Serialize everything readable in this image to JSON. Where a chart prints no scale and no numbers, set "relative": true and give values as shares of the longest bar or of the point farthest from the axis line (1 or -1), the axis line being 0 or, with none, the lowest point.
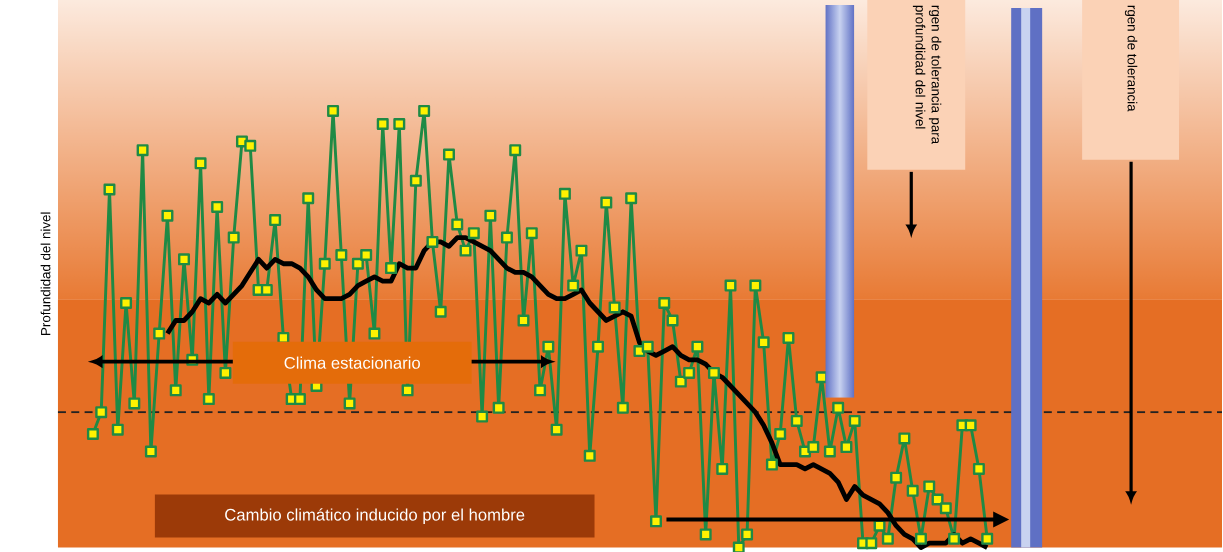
{
  "chart_data": {
    "type": "line",
    "ylabel": "Profundidad del nivel",
    "relative": true,
    "categories": [
      null,
      null,
      null,
      null,
      null,
      null,
      null,
      null,
      null,
      null,
      null,
      null,
      null,
      null,
      null,
      null,
      null,
      null,
      null,
      null,
      null,
      null,
      null,
      null,
      null,
      null,
      null,
      null,
      null,
      null,
      null,
      null,
      null,
      null,
      null,
      null,
      null,
      null,
      null,
      null,
      null,
      null,
      null,
      null,
      null,
      null,
      null,
      null,
      null,
      null,
      null,
      null,
      null,
      null,
      null,
      null,
      null,
      null,
      null,
      null,
      null,
      null,
      null,
      null,
      null,
      null,
      null,
      null,
      null,
      null,
      null,
      null,
      null,
      null,
      null,
      null,
      null,
      null,
      null,
      null,
      null,
      null,
      null,
      null,
      null,
      null,
      null,
      null,
      null,
      null,
      null,
      null,
      null,
      null,
      null,
      null,
      null,
      null,
      null,
      null,
      null,
      null,
      null,
      null,
      null,
      null,
      null,
      null,
      null
    ],
    "series": [
      {
        "color": "#1f8a45",
        "marker": "square",
        "values": [
          0.26,
          0.31,
          0.82,
          0.27,
          0.56,
          0.33,
          0.91,
          0.22,
          0.49,
          0.76,
          0.36,
          0.66,
          0.43,
          0.88,
          0.34,
          0.78,
          0.4,
          0.71,
          0.93,
          0.92,
          0.59,
          0.59,
          0.75,
          0.48,
          0.34,
          0.34,
          0.8,
          0.37,
          0.65,
          1.0,
          0.67,
          0.33,
          0.65,
          0.67,
          0.49,
          0.97,
          0.64,
          0.97,
          0.36,
          0.84,
          1.0,
          0.7,
          0.54,
          0.9,
          0.74,
          0.68,
          0.72,
          0.3,
          0.76,
          0.32,
          0.71,
          0.91,
          0.52,
          0.72,
          0.36,
          0.46,
          0.27,
          0.81,
          0.6,
          0.68,
          0.21,
          0.46,
          0.79,
          0.55,
          0.32,
          0.8,
          0.45,
          0.46,
          0.06,
          0.56,
          0.52,
          0.38,
          0.4,
          0.46,
          0.03,
          0.4,
          0.18,
          0.6,
          0.0,
          0.03,
          0.6,
          0.47,
          0.19,
          0.26,
          0.48,
          0.29,
          0.22,
          0.23,
          0.39,
          0.22,
          0.32,
          0.23,
          0.29,
          0.01,
          0.01,
          0.05,
          0.02,
          0.16,
          0.25,
          0.13,
          0.02,
          0.14,
          0.11,
          0.09,
          0.02,
          0.28,
          0.28,
          0.18,
          0.02
        ]
      },
      {
        "color": "#000000",
        "marker": "none",
        "values": [
          null,
          null,
          null,
          null,
          null,
          null,
          null,
          null,
          null,
          0.49,
          0.52,
          0.52,
          0.54,
          0.57,
          0.56,
          0.58,
          0.56,
          0.58,
          0.6,
          0.63,
          0.66,
          0.64,
          0.66,
          0.65,
          0.65,
          0.64,
          0.62,
          0.59,
          0.57,
          0.57,
          0.57,
          0.58,
          0.6,
          0.61,
          0.62,
          0.61,
          0.61,
          0.65,
          0.64,
          0.64,
          0.68,
          0.7,
          0.7,
          0.69,
          0.71,
          0.71,
          0.7,
          0.69,
          0.68,
          0.66,
          0.64,
          0.63,
          0.63,
          0.62,
          0.6,
          0.58,
          0.57,
          0.57,
          0.58,
          0.59,
          0.56,
          0.54,
          0.52,
          0.53,
          0.54,
          0.53,
          0.47,
          0.45,
          0.44,
          0.45,
          0.46,
          0.44,
          0.43,
          0.43,
          0.42,
          0.4,
          0.39,
          0.37,
          0.35,
          0.33,
          0.31,
          0.28,
          0.24,
          0.19,
          0.19,
          0.19,
          0.18,
          0.19,
          0.18,
          0.17,
          0.15,
          0.11,
          0.14,
          0.12,
          0.11,
          0.1,
          0.08,
          0.05,
          0.03,
          0.02,
          0.0,
          0.01,
          0.01,
          0.01,
          0.03,
          0.01,
          0.02,
          0.01,
          0.0
        ]
      }
    ],
    "ref_lines": [
      {
        "axis": "y",
        "value": 0.31,
        "color": "#222222",
        "line_style": "dashed"
      }
    ],
    "annotations": [
      "Clima estacionario",
      "Cambio climático inducido por el hombre",
      "rgen de tolerancia para profundidad del nivel",
      "rgen de tolerancia"
    ]
  }
}
